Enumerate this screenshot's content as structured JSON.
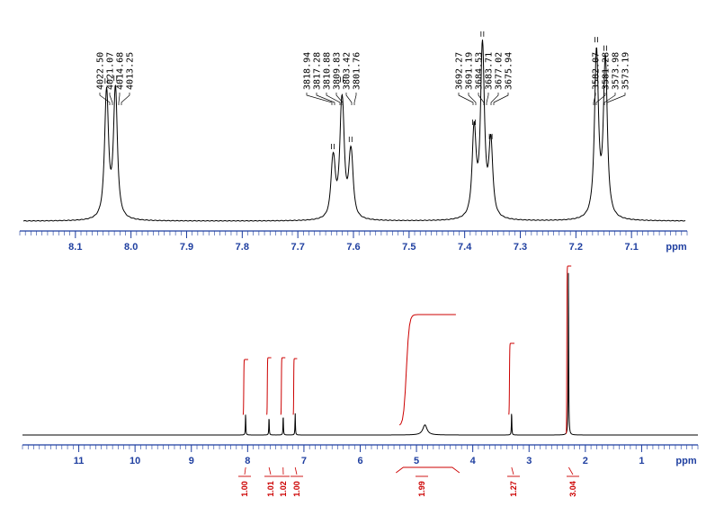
{
  "chart_data": [
    {
      "type": "line",
      "description_kind": "nmr-expansion",
      "x_unit": "ppm",
      "xlim": [
        8.2,
        7.0
      ],
      "x_ticks": [
        "8.1",
        "8.0",
        "7.9",
        "7.8",
        "7.7",
        "7.6",
        "7.5",
        "7.4",
        "7.3",
        "7.2",
        "7.1"
      ],
      "peak_labels": [
        "4022.50",
        "4021.07",
        "4014.68",
        "4013.25",
        "3818.94",
        "3817.28",
        "3810.88",
        "3809.83",
        "3803.42",
        "3801.76",
        "3692.27",
        "3691.19",
        "3684.53",
        "3683.71",
        "3677.02",
        "3675.94",
        "3582.07",
        "3581.28",
        "3573.98",
        "3573.19"
      ],
      "peaks": [
        {
          "x": 8.045,
          "y": 0.94
        },
        {
          "x": 8.043,
          "y": 0.94
        },
        {
          "x": 8.029,
          "y": 0.96
        },
        {
          "x": 8.027,
          "y": 0.96
        },
        {
          "x": 7.638,
          "y": 0.48
        },
        {
          "x": 7.635,
          "y": 0.48
        },
        {
          "x": 7.622,
          "y": 0.95
        },
        {
          "x": 7.619,
          "y": 0.95
        },
        {
          "x": 7.606,
          "y": 0.53
        },
        {
          "x": 7.603,
          "y": 0.53
        },
        {
          "x": 7.384,
          "y": 0.65
        },
        {
          "x": 7.382,
          "y": 0.65
        },
        {
          "x": 7.369,
          "y": 1.27
        },
        {
          "x": 7.367,
          "y": 1.27
        },
        {
          "x": 7.354,
          "y": 0.55
        },
        {
          "x": 7.352,
          "y": 0.55
        },
        {
          "x": 7.164,
          "y": 1.23
        },
        {
          "x": 7.162,
          "y": 1.23
        },
        {
          "x": 7.148,
          "y": 1.17
        },
        {
          "x": 7.146,
          "y": 1.17
        }
      ]
    },
    {
      "type": "line",
      "description_kind": "nmr-full",
      "x_unit": "ppm",
      "xlim": [
        12.0,
        0.0
      ],
      "x_ticks": [
        "11",
        "10",
        "9",
        "8",
        "7",
        "6",
        "5",
        "4",
        "3",
        "2",
        "1"
      ],
      "peaks": [
        {
          "x": 8.036,
          "y": 0.13
        },
        {
          "x": 7.62,
          "y": 0.11
        },
        {
          "x": 7.368,
          "y": 0.12
        },
        {
          "x": 7.155,
          "y": 0.13
        },
        {
          "x": 4.85,
          "y": 0.06
        },
        {
          "x": 3.31,
          "y": 0.14
        },
        {
          "x": 2.3,
          "y": 1.0
        }
      ],
      "integrals": [
        {
          "x_from": 8.08,
          "x_to": 7.99,
          "value": "1.00"
        },
        {
          "x_from": 7.66,
          "x_to": 7.58,
          "value": "1.01"
        },
        {
          "x_from": 7.41,
          "x_to": 7.33,
          "value": "1.02"
        },
        {
          "x_from": 7.19,
          "x_to": 7.12,
          "value": "1.00"
        },
        {
          "x_from": 5.3,
          "x_to": 4.3,
          "value": "1.99"
        },
        {
          "x_from": 3.36,
          "x_to": 3.26,
          "value": "1.27"
        },
        {
          "x_from": 2.34,
          "x_to": 2.25,
          "value": "3.04"
        }
      ]
    }
  ]
}
